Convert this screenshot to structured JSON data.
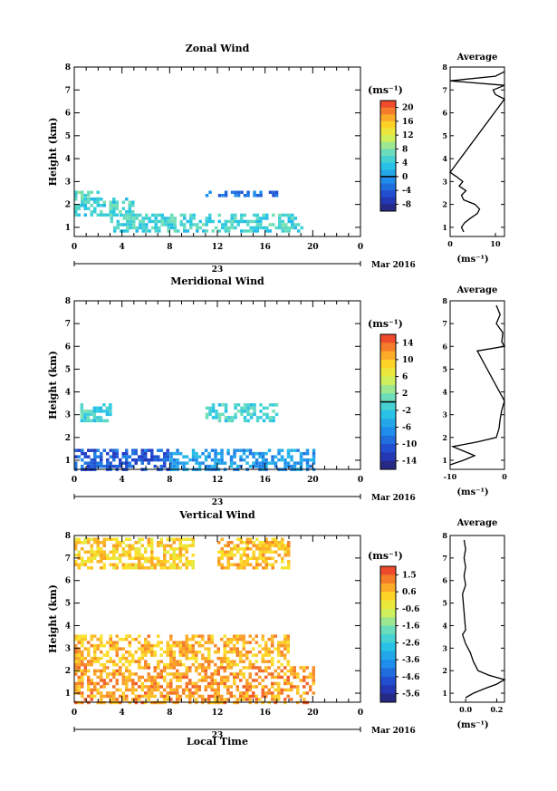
{
  "figure": {
    "month_label": "Mar 2016",
    "day_label": "23",
    "xlabel": "Local Time",
    "ylabel": "Height (km)",
    "unit_label": "(ms⁻¹)",
    "avg_xlabel": "(ms⁻¹)",
    "avg_title": "Average",
    "x_ticks": [
      "0",
      "4",
      "8",
      "12",
      "16",
      "20",
      "0"
    ],
    "y_ticks": [
      "1",
      "2",
      "3",
      "4",
      "5",
      "6",
      "7",
      "8"
    ]
  },
  "chart_data": [
    {
      "type": "heatmap",
      "title": "Zonal Wind",
      "xlabel": "Local Time",
      "ylabel": "Height (km)",
      "xlim": [
        0,
        24
      ],
      "ylim": [
        0.6,
        8
      ],
      "colorbar": {
        "label": "(ms⁻¹)",
        "ticks": [
          "20",
          "16",
          "12",
          "8",
          "4",
          "0",
          "-4",
          "-8"
        ],
        "range": [
          -10,
          22
        ],
        "zero_line": 0
      },
      "regions": [
        {
          "x": [
            0,
            2
          ],
          "y": [
            2.3,
            2.6
          ],
          "value": 6
        },
        {
          "x": [
            0,
            5
          ],
          "y": [
            1.6,
            2.3
          ],
          "value": 5
        },
        {
          "x": [
            3,
            19
          ],
          "y": [
            0.8,
            1.6
          ],
          "value": 5
        },
        {
          "x": [
            11,
            17
          ],
          "y": [
            2.4,
            2.6
          ],
          "value": -3
        }
      ],
      "average_profile": {
        "title": "Average",
        "xlabel": "(ms⁻¹)",
        "xlim": [
          0,
          12
        ],
        "x_ticks": [
          "0",
          "10"
        ],
        "height": [
          0.8,
          1.0,
          1.2,
          1.4,
          1.6,
          1.8,
          2.0,
          2.2,
          2.4,
          2.6,
          2.8,
          3.0,
          3.2,
          3.4,
          6.6,
          6.8,
          7.0,
          7.2,
          7.4,
          7.6,
          7.8
        ],
        "value": [
          3.0,
          2.5,
          3.2,
          4.5,
          6.0,
          6.5,
          5.5,
          3.0,
          2.5,
          3.5,
          2.0,
          2.8,
          1.5,
          0.0,
          12.0,
          10.0,
          9.5,
          12.0,
          0.0,
          10.0,
          12.0
        ]
      }
    },
    {
      "type": "heatmap",
      "title": "Meridional Wind",
      "xlabel": "Local Time",
      "ylabel": "Height (km)",
      "xlim": [
        0,
        24
      ],
      "ylim": [
        0.6,
        8
      ],
      "colorbar": {
        "label": "(ms⁻¹)",
        "ticks": [
          "14",
          "10",
          "6",
          "2",
          "-2",
          "-6",
          "-10",
          "-14"
        ],
        "range": [
          -16,
          16
        ],
        "zero_line": 0
      },
      "regions": [
        {
          "x": [
            0.5,
            3
          ],
          "y": [
            2.7,
            3.5
          ],
          "value": -1
        },
        {
          "x": [
            11,
            17
          ],
          "y": [
            2.7,
            3.5
          ],
          "value": -1
        },
        {
          "x": [
            0,
            8
          ],
          "y": [
            0.6,
            1.5
          ],
          "value": -10
        },
        {
          "x": [
            8,
            20
          ],
          "y": [
            0.6,
            1.5
          ],
          "value": -6
        }
      ],
      "average_profile": {
        "title": "Average",
        "xlabel": "(ms⁻¹)",
        "xlim": [
          -10,
          0
        ],
        "x_ticks": [
          "-10",
          "0"
        ],
        "height": [
          0.8,
          1.0,
          1.2,
          1.4,
          1.6,
          1.8,
          2.0,
          2.4,
          2.8,
          3.2,
          3.6,
          5.8,
          6.0,
          6.2,
          6.6,
          7.0,
          7.4,
          7.8
        ],
        "value": [
          -10.5,
          -7.5,
          -5.5,
          -7.5,
          -9.5,
          -5.0,
          -1.5,
          -1.0,
          -0.8,
          -0.5,
          0.0,
          -5.0,
          0.0,
          -0.5,
          -0.3,
          -1.5,
          -0.8,
          -1.5
        ]
      }
    },
    {
      "type": "heatmap",
      "title": "Vertical Wind",
      "xlabel": "Local Time",
      "ylabel": "Height (km)",
      "xlim": [
        0,
        24
      ],
      "ylim": [
        0.6,
        8
      ],
      "colorbar": {
        "label": "(ms⁻¹)",
        "ticks": [
          "1.5",
          "0.6",
          "-0.6",
          "-1.6",
          "-2.6",
          "-3.6",
          "-4.6",
          "-5.6"
        ],
        "range": [
          -6,
          2
        ]
      },
      "regions": [
        {
          "x": [
            0,
            10
          ],
          "y": [
            6.5,
            7.9
          ],
          "value": 0.2
        },
        {
          "x": [
            12,
            18
          ],
          "y": [
            6.6,
            7.9
          ],
          "value": 0.5
        },
        {
          "x": [
            0,
            18
          ],
          "y": [
            2.2,
            3.6
          ],
          "value": 0.6
        },
        {
          "x": [
            0,
            20
          ],
          "y": [
            0.6,
            2.2
          ],
          "value": 0.9
        }
      ],
      "average_profile": {
        "title": "Average",
        "xlabel": "(ms⁻¹)",
        "xlim": [
          -0.1,
          0.25
        ],
        "x_ticks": [
          "0.0",
          "0.2"
        ],
        "height": [
          0.8,
          1.0,
          1.2,
          1.4,
          1.6,
          1.8,
          2.0,
          2.4,
          2.8,
          3.2,
          3.6,
          3.8,
          5.4,
          5.8,
          6.2,
          6.6,
          7.0,
          7.4,
          7.8
        ],
        "value": [
          0.0,
          0.05,
          0.12,
          0.2,
          0.25,
          0.15,
          0.08,
          0.05,
          0.03,
          0.0,
          -0.02,
          0.0,
          -0.02,
          0.0,
          -0.01,
          0.0,
          -0.01,
          0.0,
          -0.01
        ]
      }
    }
  ]
}
